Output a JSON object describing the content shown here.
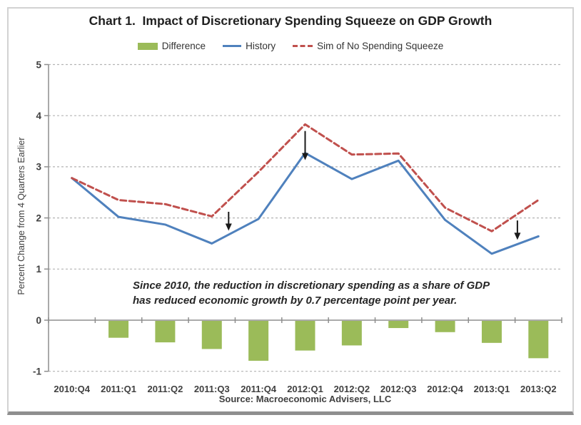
{
  "title": "Chart 1.  Impact of Discretionary Spending Squeeze on GDP Growth",
  "legend": [
    {
      "label": "Difference",
      "type": "bar",
      "color": "#9BBB59"
    },
    {
      "label": "History",
      "type": "line-solid",
      "color": "#4F81BD"
    },
    {
      "label": "Sim of No Spending Squeeze",
      "type": "line-dashed",
      "color": "#C0504D"
    }
  ],
  "annotation": {
    "line1": "Since 2010, the reduction in discretionary spending as a share of GDP",
    "line2": "has reduced economic growth by 0.7 percentage point per year."
  },
  "source": "Source: Macroeconomic Advisers, LLC",
  "colors": {
    "bar": "#9BBB59",
    "history_line": "#4F81BD",
    "sim_line": "#C0504D",
    "gridline": "#b3b3b3",
    "axis": "#8e8e8e",
    "tick_text": "#404040",
    "arrow": "#1a1a1a"
  },
  "chart_data": {
    "type": "combo",
    "categories": [
      "2010:Q4",
      "2011:Q1",
      "2011:Q2",
      "2011:Q3",
      "2011:Q4",
      "2012:Q1",
      "2012:Q2",
      "2012:Q3",
      "2012:Q4",
      "2013:Q1",
      "2013:Q2"
    ],
    "series": [
      {
        "name": "Difference",
        "type": "bar",
        "color": "#9BBB59",
        "values": [
          0,
          -0.33,
          -0.42,
          -0.55,
          -0.78,
          -0.58,
          -0.48,
          -0.14,
          -0.22,
          -0.43,
          -0.73
        ]
      },
      {
        "name": "History",
        "type": "line",
        "style": "solid",
        "color": "#4F81BD",
        "values": [
          2.78,
          2.02,
          1.87,
          1.5,
          1.98,
          3.27,
          2.76,
          3.12,
          1.96,
          1.3,
          1.64
        ]
      },
      {
        "name": "Sim of No Spending Squeeze",
        "type": "line",
        "style": "dashed",
        "color": "#C0504D",
        "values": [
          2.78,
          2.35,
          2.27,
          2.03,
          2.9,
          3.83,
          3.24,
          3.26,
          2.2,
          1.74,
          2.35
        ]
      }
    ],
    "title": "Chart 1.  Impact of Discretionary Spending Squeeze on GDP Growth",
    "xlabel": "",
    "ylabel": "Percent Change  from 4 Quarters Earlier",
    "ylim": [
      -1,
      5
    ],
    "yticks": [
      5,
      4,
      3,
      2,
      1,
      0,
      -1
    ],
    "grid": "horizontal-dashed",
    "legend_position": "top",
    "arrows": [
      {
        "x_index": 3.36,
        "y_from": 2.12,
        "y_to": 1.75
      },
      {
        "x_index": 5.0,
        "y_from": 3.7,
        "y_to": 3.13
      },
      {
        "x_index": 9.55,
        "y_from": 1.95,
        "y_to": 1.57
      }
    ]
  }
}
